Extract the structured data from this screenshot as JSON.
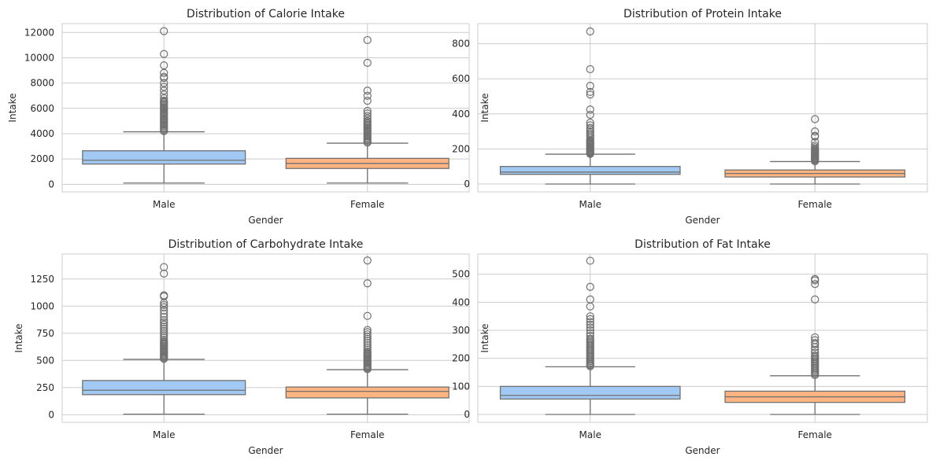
{
  "chart_data": [
    {
      "type": "box",
      "title": "Distribution of Calorie Intake",
      "xlabel": "Gender",
      "ylabel": "Intake",
      "categories": [
        "Male",
        "Female"
      ],
      "colors": [
        "#a1c9f4",
        "#ffb482"
      ],
      "grid": true,
      "ylim": [
        -600,
        12700
      ],
      "yticks": [
        0,
        2000,
        4000,
        6000,
        8000,
        10000,
        12000
      ],
      "boxes": [
        {
          "category": "Male",
          "min": 100,
          "q1": 1600,
          "median": 1900,
          "q3": 2650,
          "max": 4150,
          "outliers": [
            4200,
            4300,
            4400,
            4500,
            4600,
            4700,
            4800,
            4900,
            5000,
            5100,
            5200,
            5300,
            5400,
            5500,
            5600,
            5700,
            5800,
            5900,
            6000,
            6100,
            6200,
            6300,
            6400,
            6500,
            6600,
            6800,
            7100,
            7400,
            7700,
            8000,
            8400,
            8500,
            8800,
            9400,
            10300,
            12100
          ]
        },
        {
          "category": "Female",
          "min": 100,
          "q1": 1250,
          "median": 1650,
          "q3": 2050,
          "max": 3250,
          "outliers": [
            3300,
            3400,
            3500,
            3600,
            3700,
            3800,
            3900,
            4000,
            4100,
            4200,
            4300,
            4400,
            4500,
            4600,
            4700,
            4800,
            4900,
            5000,
            5200,
            5400,
            5600,
            5800,
            6600,
            7000,
            7400,
            9600,
            11400
          ]
        }
      ]
    },
    {
      "type": "box",
      "title": "Distribution of Protein Intake",
      "xlabel": "Gender",
      "ylabel": "Intake",
      "categories": [
        "Male",
        "Female"
      ],
      "colors": [
        "#a1c9f4",
        "#ffb482"
      ],
      "grid": true,
      "ylim": [
        -45,
        915
      ],
      "yticks": [
        0,
        200,
        400,
        600,
        800
      ],
      "boxes": [
        {
          "category": "Male",
          "min": 0,
          "q1": 55,
          "median": 68,
          "q3": 100,
          "max": 170,
          "outliers": [
            172,
            176,
            180,
            185,
            190,
            195,
            200,
            205,
            210,
            215,
            220,
            225,
            230,
            235,
            240,
            245,
            250,
            260,
            270,
            280,
            290,
            300,
            310,
            320,
            335,
            350,
            395,
            425,
            510,
            525,
            560,
            655,
            870
          ]
        },
        {
          "category": "Female",
          "min": 0,
          "q1": 40,
          "median": 60,
          "q3": 80,
          "max": 128,
          "outliers": [
            130,
            135,
            140,
            145,
            150,
            155,
            160,
            165,
            170,
            175,
            180,
            185,
            190,
            195,
            200,
            210,
            220,
            240,
            270,
            275,
            300,
            370
          ]
        }
      ]
    },
    {
      "type": "box",
      "title": "Distribution of Carbohydrate Intake",
      "xlabel": "Gender",
      "ylabel": "Intake",
      "categories": [
        "Male",
        "Female"
      ],
      "colors": [
        "#a1c9f4",
        "#ffb482"
      ],
      "grid": true,
      "ylim": [
        -70,
        1480
      ],
      "yticks": [
        0,
        250,
        500,
        750,
        1000,
        1250
      ],
      "boxes": [
        {
          "category": "Male",
          "min": 5,
          "q1": 185,
          "median": 225,
          "q3": 315,
          "max": 510,
          "outliers": [
            515,
            525,
            535,
            545,
            555,
            565,
            575,
            585,
            595,
            605,
            615,
            625,
            635,
            645,
            655,
            665,
            675,
            690,
            710,
            730,
            750,
            770,
            790,
            810,
            830,
            850,
            870,
            900,
            930,
            960,
            990,
            1010,
            1030,
            1090,
            1100,
            1300,
            1360
          ]
        },
        {
          "category": "Female",
          "min": 5,
          "q1": 155,
          "median": 215,
          "q3": 255,
          "max": 415,
          "outliers": [
            420,
            430,
            440,
            450,
            460,
            470,
            480,
            490,
            500,
            510,
            520,
            530,
            540,
            550,
            560,
            570,
            580,
            600,
            620,
            640,
            660,
            680,
            700,
            720,
            740,
            760,
            780,
            910,
            1210,
            1420
          ]
        }
      ]
    },
    {
      "type": "box",
      "title": "Distribution of Fat Intake",
      "xlabel": "Gender",
      "ylabel": "Intake",
      "categories": [
        "Male",
        "Female"
      ],
      "colors": [
        "#a1c9f4",
        "#ffb482"
      ],
      "grid": true,
      "ylim": [
        -28,
        572
      ],
      "yticks": [
        0,
        100,
        200,
        300,
        400,
        500
      ],
      "boxes": [
        {
          "category": "Male",
          "min": 0,
          "q1": 55,
          "median": 68,
          "q3": 100,
          "max": 170,
          "outliers": [
            172,
            176,
            180,
            185,
            190,
            195,
            200,
            205,
            210,
            215,
            220,
            225,
            230,
            235,
            240,
            245,
            250,
            255,
            260,
            265,
            270,
            280,
            290,
            300,
            310,
            320,
            330,
            340,
            350,
            385,
            410,
            455,
            548
          ]
        },
        {
          "category": "Female",
          "min": 0,
          "q1": 43,
          "median": 63,
          "q3": 83,
          "max": 138,
          "outliers": [
            140,
            145,
            150,
            155,
            160,
            165,
            170,
            175,
            180,
            185,
            190,
            195,
            200,
            205,
            210,
            220,
            230,
            240,
            250,
            255,
            265,
            275,
            410,
            465,
            478,
            483
          ]
        }
      ]
    }
  ]
}
